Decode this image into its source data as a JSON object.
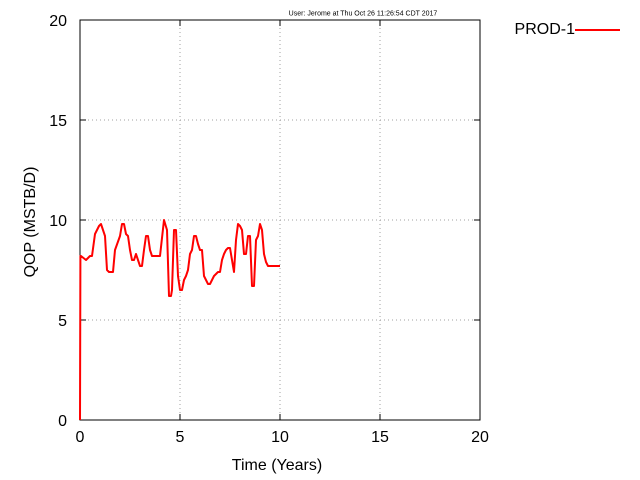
{
  "chart_data": {
    "type": "line",
    "title": "",
    "timestamp": "User: Jerome at Thu Oct 26 11:26:54 CDT 2017",
    "xlabel": "Time (Years)",
    "ylabel": "QOP (MSTB/D)",
    "xlim": [
      0,
      20
    ],
    "ylim": [
      0,
      20
    ],
    "xticks": [
      "0",
      "5",
      "10",
      "15",
      "20"
    ],
    "yticks": [
      "0",
      "5",
      "10",
      "15",
      "20"
    ],
    "grid": true,
    "legend_position": "top-right outside",
    "series": [
      {
        "name": "PROD-1",
        "color": "#ff0000",
        "x": [
          0,
          0.02,
          0.05,
          0.3,
          0.5,
          0.6,
          0.75,
          0.85,
          0.95,
          1.05,
          1.15,
          1.25,
          1.35,
          1.45,
          1.55,
          1.65,
          1.75,
          2.0,
          2.1,
          2.2,
          2.3,
          2.4,
          2.5,
          2.6,
          2.7,
          2.8,
          2.9,
          3.0,
          3.1,
          3.2,
          3.3,
          3.4,
          3.5,
          3.6,
          3.7,
          3.8,
          4.0,
          4.2,
          4.35,
          4.45,
          4.55,
          4.6,
          4.7,
          4.8,
          4.9,
          5.0,
          5.1,
          5.2,
          5.3,
          5.4,
          5.5,
          5.6,
          5.7,
          5.8,
          5.9,
          6.0,
          6.1,
          6.2,
          6.3,
          6.4,
          6.5,
          6.6,
          6.7,
          6.8,
          6.9,
          7.0,
          7.1,
          7.2,
          7.3,
          7.4,
          7.5,
          7.6,
          7.7,
          7.8,
          7.9,
          8.0,
          8.1,
          8.2,
          8.3,
          8.4,
          8.5,
          8.6,
          8.7,
          8.8,
          8.9,
          9.0,
          9.1,
          9.2,
          9.3,
          9.4,
          9.5,
          9.6,
          9.7,
          9.8,
          9.9,
          10.0
        ],
        "values": [
          0,
          8.2,
          8.2,
          8.0,
          8.2,
          8.2,
          9.3,
          9.5,
          9.7,
          9.8,
          9.5,
          9.2,
          7.5,
          7.4,
          7.4,
          7.4,
          8.5,
          9.2,
          9.8,
          9.8,
          9.3,
          9.2,
          8.5,
          8.0,
          8.0,
          8.3,
          8.0,
          7.7,
          7.7,
          8.5,
          9.2,
          9.2,
          8.5,
          8.2,
          8.2,
          8.2,
          8.2,
          10.0,
          9.5,
          6.2,
          6.2,
          6.5,
          9.5,
          9.5,
          7.2,
          6.5,
          6.5,
          7.0,
          7.2,
          7.5,
          8.3,
          8.5,
          9.2,
          9.2,
          8.8,
          8.5,
          8.5,
          7.2,
          7.0,
          6.8,
          6.8,
          7.0,
          7.2,
          7.3,
          7.4,
          7.4,
          8.0,
          8.3,
          8.5,
          8.6,
          8.6,
          8.0,
          7.4,
          9.0,
          9.8,
          9.7,
          9.5,
          8.3,
          8.3,
          9.2,
          9.2,
          6.7,
          6.7,
          9.0,
          9.2,
          9.8,
          9.5,
          8.3,
          7.9,
          7.7,
          7.7,
          7.7,
          7.7,
          7.7,
          7.7,
          7.7
        ]
      }
    ]
  }
}
